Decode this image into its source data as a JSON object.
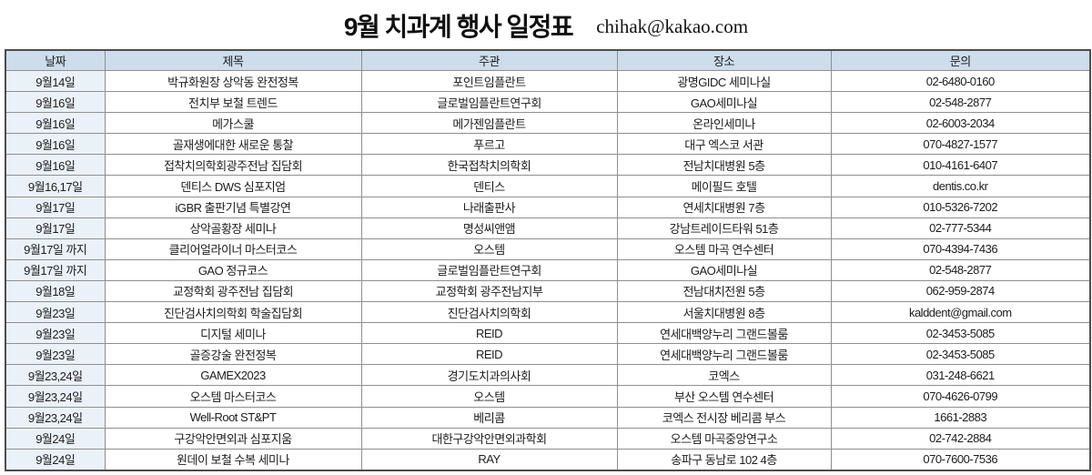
{
  "header": {
    "title": "9월 치과계 행사 일정표",
    "email": "chihak@kakao.com"
  },
  "table": {
    "columns": [
      "날짜",
      "제목",
      "주관",
      "장소",
      "문의"
    ],
    "rows": [
      [
        "9월14일",
        "박규화원장 상악동 완전정복",
        "포인트임플란트",
        "광명GIDC 세미나실",
        "02-6480-0160"
      ],
      [
        "9월16일",
        "전치부 보철 트렌드",
        "글로벌임플란트연구회",
        "GAO세미나실",
        "02-548-2877"
      ],
      [
        "9월16일",
        "메가스쿨",
        "메가젠임플란트",
        "온라인세미나",
        "02-6003-2034"
      ],
      [
        "9월16일",
        "골재생에대한 새로운 통찰",
        "푸르고",
        "대구 엑스코 서관",
        "070-4827-1577"
      ],
      [
        "9월16일",
        "접착치의학회광주전남 집담회",
        "한국접착치의학회",
        "전남치대병원 5층",
        "010-4161-6407"
      ],
      [
        "9월16,17일",
        "덴티스 DWS 심포지엄",
        "덴티스",
        "메이필드 호텔",
        "dentis.co.kr"
      ],
      [
        "9월17일",
        "iGBR 출판기념 특별강연",
        "나래출판사",
        "연세치대병원 7층",
        "010-5326-7202"
      ],
      [
        "9월17일",
        "상악골황장 세미나",
        "명성씨앤앰",
        "강남트레이드타워 51층",
        "02-777-5344"
      ],
      [
        "9월17일 까지",
        "클리어얼라이너 마스터코스",
        "오스템",
        "오스템 마곡 연수센터",
        "070-4394-7436"
      ],
      [
        "9월17일 까지",
        "GAO 정규코스",
        "글로벌임플란트연구회",
        "GAO세미나실",
        "02-548-2877"
      ],
      [
        "9월18일",
        "교정학회 광주전남 집담회",
        "교정학회 광주전남지부",
        "전남대치전원 5층",
        "062-959-2874"
      ],
      [
        "9월23일",
        "진단검사치의학회 학술집담회",
        "진단검사치의학회",
        "서울치대병원 8층",
        "kalddent@gmail.com"
      ],
      [
        "9월23일",
        "디지털 세미나",
        "REID",
        "연세대백양누리 그랜드볼룸",
        "02-3453-5085"
      ],
      [
        "9월23일",
        "골증강술 완전정복",
        "REID",
        "연세대백양누리 그랜드볼룸",
        "02-3453-5085"
      ],
      [
        "9월23,24일",
        "GAMEX2023",
        "경기도치과의사회",
        "코엑스",
        "031-248-6621"
      ],
      [
        "9월23,24일",
        "오스템 마스터코스",
        "오스템",
        "부산 오스템 연수센터",
        "070-4626-0799"
      ],
      [
        "9월23,24일",
        "Well-Root ST&PT",
        "베리콤",
        "코엑스 전시장 베리콤 부스",
        "1661-2883"
      ],
      [
        "9월24일",
        "구강악안면외과 심포지움",
        "대한구강악안면외과학회",
        "오스템 마곡중앙연구소",
        "02-742-2884"
      ],
      [
        "9월24일",
        "원데이 보철 수복 세미나",
        "RAY",
        "송파구 동남로 102 4층",
        "070-7600-7536"
      ]
    ]
  },
  "colors": {
    "header_bg": "#cdddec",
    "date_column_bg": "#eaf1f8",
    "inner_border": "#8f8f8f",
    "outer_border": "#4d4d4d"
  }
}
